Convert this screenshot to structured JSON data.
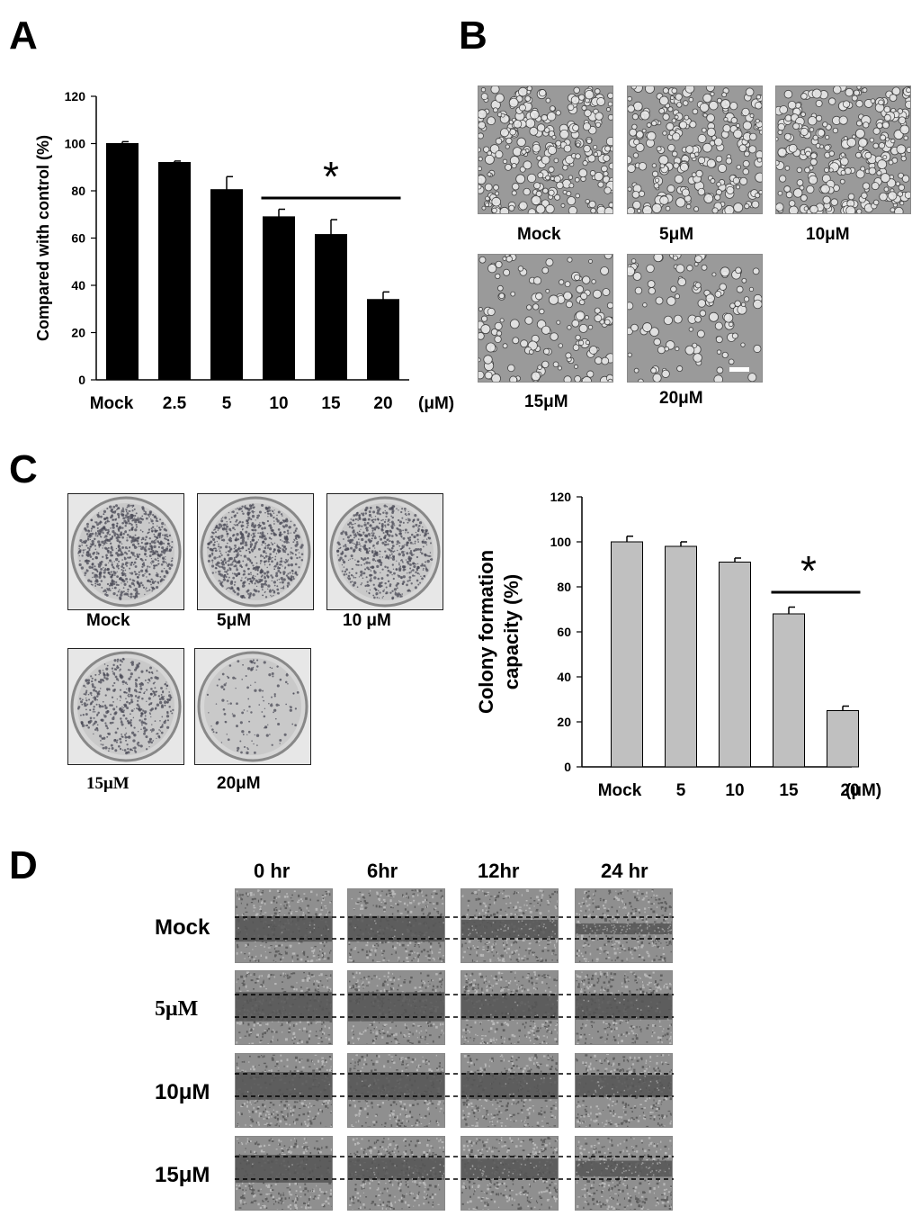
{
  "panels": {
    "a": "A",
    "b": "B",
    "c": "C",
    "d": "D"
  },
  "chart_data": [
    {
      "type": "bar",
      "ylabel": "Compared with control (%)",
      "xlabel": "",
      "unit": "(μM)",
      "categories": [
        "Mock",
        "2.5",
        "5",
        "10",
        "15",
        "20"
      ],
      "values": [
        100,
        92,
        80.5,
        69,
        61.5,
        34
      ],
      "errors": [
        0.8,
        0.6,
        5.5,
        3.2,
        6.3,
        3.2
      ],
      "ylim": [
        0,
        120
      ],
      "yticks": [
        0,
        20,
        40,
        60,
        80,
        100,
        120
      ],
      "significance": {
        "label": "*",
        "from": "10",
        "to": "20"
      },
      "bar_color": "#000000",
      "grid": false
    },
    {
      "type": "bar",
      "ylabel": "Colony formation capacity (%)",
      "ylabel_lines": [
        "Colony  formation",
        "capacity (%)"
      ],
      "xlabel": "",
      "unit": "(μM)",
      "categories": [
        "Mock",
        "5",
        "10",
        "15",
        "20"
      ],
      "values": [
        100,
        98,
        91,
        68,
        25
      ],
      "errors": [
        2.5,
        2,
        1.8,
        3,
        2
      ],
      "ylim": [
        0,
        120
      ],
      "yticks": [
        0,
        20,
        40,
        60,
        80,
        100,
        120
      ],
      "significance": {
        "label": "*",
        "from": "15",
        "to": "20"
      },
      "bar_color": "#c0c0c0",
      "grid": false
    }
  ],
  "panel_b": {
    "images": [
      {
        "label": "Mock",
        "density": 0.9
      },
      {
        "label": "5μM",
        "density": 0.8
      },
      {
        "label": "10μM",
        "density": 0.85
      },
      {
        "label": "15μM",
        "density": 0.45
      },
      {
        "label": "20μM",
        "density": 0.35
      }
    ]
  },
  "panel_c": {
    "dishes": [
      {
        "label": "Mock",
        "density": 0.9
      },
      {
        "label": "5μM",
        "density": 0.85
      },
      {
        "label": "10 μM",
        "density": 0.7
      },
      {
        "label": "15μM",
        "density": 0.55
      },
      {
        "label": "20μM",
        "density": 0.15
      }
    ]
  },
  "panel_d": {
    "columns": [
      "0 hr",
      "6hr",
      "12hr",
      "24 hr"
    ],
    "rows": [
      "Mock",
      "5μM",
      "10μM",
      "15μM"
    ]
  },
  "colors": {
    "micrograph_bg": "#9a9a9a",
    "wound_cells": "#8f8f8f",
    "wound_gap": "#555555"
  }
}
